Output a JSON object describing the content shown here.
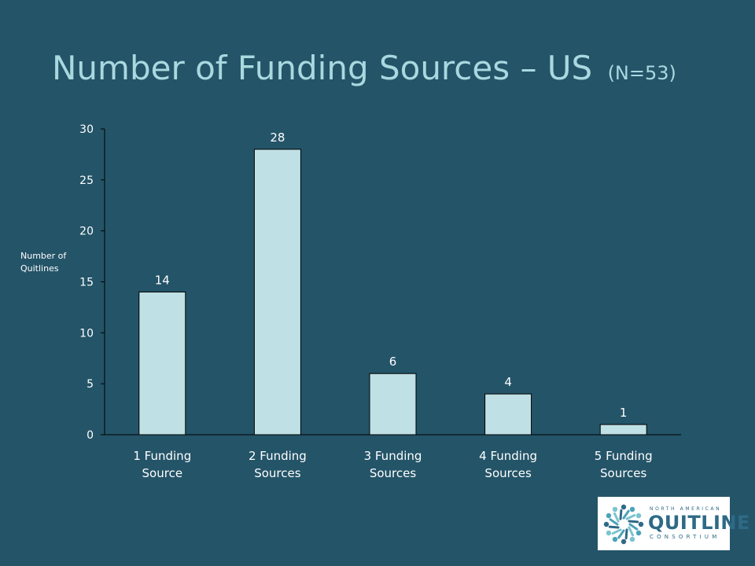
{
  "title": "Number of Funding Sources – US",
  "subtitle": "(N=53)",
  "colors": {
    "background": "#245468",
    "bar": "#bfe0e4",
    "title": "#a9d8df",
    "text": "#ffffff"
  },
  "logo": {
    "icon": "starburst-logo-icon",
    "line1": "NORTH AMERICAN",
    "line2": "QUITLINE",
    "line3": "CONSORTIUM"
  },
  "chart_data": {
    "type": "bar",
    "categories": [
      "1 Funding Source",
      "2 Funding Sources",
      "3 Funding Sources",
      "4 Funding Sources",
      "5 Funding Sources"
    ],
    "category_lines": [
      [
        "1 Funding",
        "Source"
      ],
      [
        "2 Funding",
        "Sources"
      ],
      [
        "3 Funding",
        "Sources"
      ],
      [
        "4 Funding",
        "Sources"
      ],
      [
        "5 Funding",
        "Sources"
      ]
    ],
    "values": [
      14,
      28,
      6,
      4,
      1
    ],
    "ylabel_lines": [
      "Number of",
      "Quitlines"
    ],
    "ylim": [
      0,
      30
    ],
    "yticks": [
      0,
      5,
      10,
      15,
      20,
      25,
      30
    ],
    "grid": false,
    "legend": "none"
  }
}
